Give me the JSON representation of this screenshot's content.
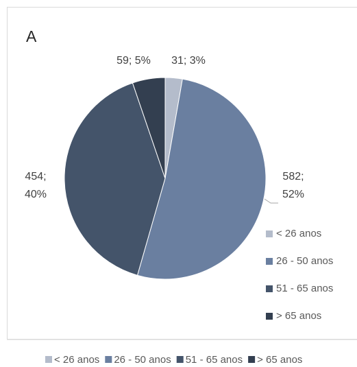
{
  "chart_data": {
    "type": "pie",
    "title": "A",
    "categories": [
      "< 26 anos",
      "26 - 50 anos",
      "51 - 65 anos",
      "> 65 anos"
    ],
    "values": [
      31,
      582,
      454,
      59
    ],
    "value_labels": [
      "31; 3%",
      "582; 52%",
      "454; 40%",
      "59; 5%"
    ],
    "colors": [
      "#b4bccb",
      "#6a7fa0",
      "#44546a",
      "#333f50"
    ],
    "legend": [
      "right",
      "bottom"
    ]
  }
}
